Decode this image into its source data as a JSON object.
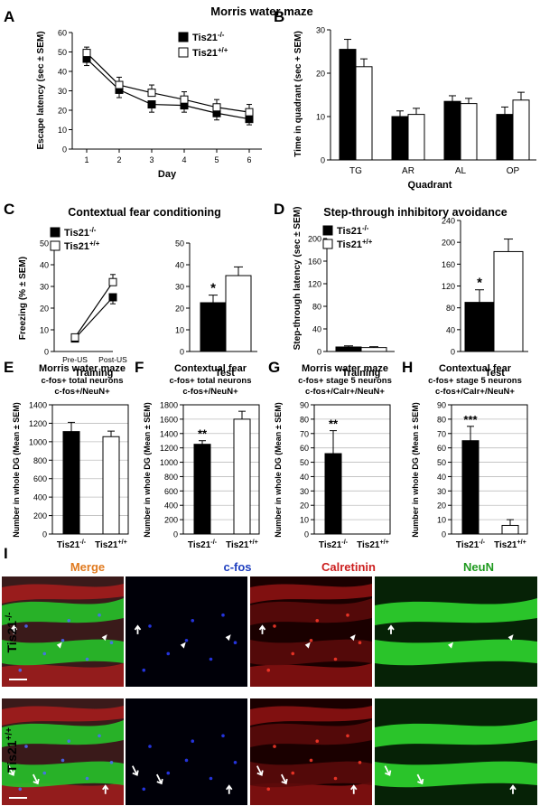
{
  "figure_title": "Morris water maze",
  "legend": {
    "ko_base": "Tis21",
    "ko_sup": "-/-",
    "wt_base": "Tis21",
    "wt_sup": "+/+"
  },
  "colors": {
    "ko": "#000000",
    "wt": "#ffffff",
    "merge": "#e07a1f",
    "cfos": "#1f3fbf",
    "calretinin": "#cc1f1f",
    "neun": "#1f9a1f"
  },
  "panels": {
    "A": "A",
    "B": "B",
    "C": "C",
    "D": "D",
    "E": "E",
    "F": "F",
    "G": "G",
    "H": "H",
    "I": "I"
  },
  "panel_C": {
    "title": "Contextual fear conditioning"
  },
  "panel_D": {
    "title": "Step-through inhibitory avoidance"
  },
  "panel_E": {
    "title1": "Morris water maze",
    "title2": "c-fos+ total neurons",
    "title3": "c-fos+/NeuN+"
  },
  "panel_F": {
    "title1": "Contextual fear",
    "title2": "c-fos+ total neurons",
    "title3": "c-fos+/NeuN+"
  },
  "panel_G": {
    "title1": "Morris water maze",
    "title2": "c-fos+ stage 5 neurons",
    "title3": "c-fos+/Calr+/NeuN+"
  },
  "panel_H": {
    "title1": "Contextual fear",
    "title2": "c-fos+ stage 5 neurons",
    "title3": "c-fos+/Calr+/NeuN+"
  },
  "micro": {
    "col_titles": [
      "Merge",
      "c-fos",
      "Calretinin",
      "NeuN"
    ],
    "row_titles": [
      "Tis21-/-",
      "Tis21+/+"
    ]
  },
  "chart_data": [
    {
      "id": "A",
      "type": "line",
      "xlabel": "Day",
      "ylabel": "Escape latency (sec ± SEM)",
      "x": [
        1,
        2,
        3,
        4,
        5,
        6
      ],
      "ylim": [
        0,
        60
      ],
      "yticks": [
        0,
        10,
        20,
        30,
        40,
        50,
        60
      ],
      "series": [
        {
          "name": "Tis21-/-",
          "values": [
            46.5,
            30.5,
            23,
            22.5,
            18.5,
            15.5
          ],
          "err": [
            3.5,
            4,
            4,
            3.5,
            3.5,
            3
          ]
        },
        {
          "name": "Tis21+/+",
          "values": [
            49.5,
            33,
            29,
            25.5,
            21.5,
            19
          ],
          "err": [
            3,
            4,
            4,
            4,
            4,
            4
          ]
        }
      ]
    },
    {
      "id": "B",
      "type": "bar",
      "xlabel": "Quadrant",
      "ylabel": "Time in quadrant (sec + SEM)",
      "categories": [
        "TG",
        "AR",
        "AL",
        "OP"
      ],
      "ylim": [
        0,
        30
      ],
      "yticks": [
        0,
        10,
        20,
        30
      ],
      "series": [
        {
          "name": "Tis21-/-",
          "values": [
            25.5,
            10,
            13.5,
            10.5
          ],
          "err": [
            2.3,
            1.3,
            1.3,
            1.7
          ]
        },
        {
          "name": "Tis21+/+",
          "values": [
            21.5,
            10.5,
            13,
            13.8
          ],
          "err": [
            1.8,
            1.4,
            1.2,
            1.8
          ]
        }
      ]
    },
    {
      "id": "C-training",
      "type": "line",
      "xlabel": "Training",
      "ylabel": "Freezing (% ± SEM)",
      "categories": [
        "Pre-US",
        "Post-US"
      ],
      "ylim": [
        0,
        50
      ],
      "yticks": [
        0,
        10,
        20,
        30,
        40,
        50
      ],
      "series": [
        {
          "name": "Tis21-/-",
          "values": [
            6,
            25
          ],
          "err": [
            1.5,
            3
          ]
        },
        {
          "name": "Tis21+/+",
          "values": [
            6.5,
            32
          ],
          "err": [
            1.5,
            3.5
          ]
        }
      ]
    },
    {
      "id": "C-test",
      "type": "bar",
      "xlabel": "Test",
      "ylim": [
        0,
        50
      ],
      "yticks": [
        0,
        10,
        20,
        30,
        40,
        50
      ],
      "series": [
        {
          "name": "Tis21-/-",
          "values": [
            22.5
          ],
          "err": [
            3.5
          ],
          "annotation": "*"
        },
        {
          "name": "Tis21+/+",
          "values": [
            35
          ],
          "err": [
            4
          ]
        }
      ]
    },
    {
      "id": "D-training",
      "type": "bar",
      "xlabel": "Training",
      "ylabel": "Step-through latency (sec ± SEM)",
      "ylim": [
        0,
        240
      ],
      "yticks": [
        0,
        40,
        80,
        120,
        160,
        200,
        240
      ],
      "series": [
        {
          "name": "Tis21-/-",
          "values": [
            8
          ],
          "err": [
            2
          ]
        },
        {
          "name": "Tis21+/+",
          "values": [
            7
          ],
          "err": [
            1.5
          ]
        }
      ]
    },
    {
      "id": "D-test",
      "type": "bar",
      "xlabel": "Test",
      "ylim": [
        0,
        240
      ],
      "yticks": [
        0,
        40,
        80,
        120,
        160,
        200,
        240
      ],
      "series": [
        {
          "name": "Tis21-/-",
          "values": [
            90
          ],
          "err": [
            23
          ],
          "annotation": "*"
        },
        {
          "name": "Tis21+/+",
          "values": [
            183
          ],
          "err": [
            23
          ]
        }
      ]
    },
    {
      "id": "E",
      "type": "bar",
      "ylabel": "Number in whole DG (Mean ± SEM)",
      "categories": [
        "Tis21-/-",
        "Tis21+/+"
      ],
      "ylim": [
        0,
        1400
      ],
      "yticks": [
        0,
        200,
        400,
        600,
        800,
        1000,
        1200,
        1400
      ],
      "values": [
        1110,
        1055
      ],
      "err": [
        100,
        60
      ],
      "annotations": [
        "",
        ""
      ]
    },
    {
      "id": "F",
      "type": "bar",
      "ylabel": "Number in whole DG (Mean ± SEM)",
      "categories": [
        "Tis21-/-",
        "Tis21+/+"
      ],
      "ylim": [
        0,
        1800
      ],
      "yticks": [
        0,
        200,
        400,
        600,
        800,
        1000,
        1200,
        1400,
        1600,
        1800
      ],
      "values": [
        1250,
        1600
      ],
      "err": [
        50,
        110
      ],
      "annotations": [
        "**",
        ""
      ]
    },
    {
      "id": "G",
      "type": "bar",
      "ylabel": "Number in whole DG (Mean ± SEM)",
      "categories": [
        "Tis21-/-",
        "Tis21+/+"
      ],
      "ylim": [
        0,
        90
      ],
      "yticks": [
        0,
        10,
        20,
        30,
        40,
        50,
        60,
        70,
        80,
        90
      ],
      "values": [
        56,
        0
      ],
      "err": [
        16,
        0
      ],
      "annotations": [
        "**",
        ""
      ]
    },
    {
      "id": "H",
      "type": "bar",
      "ylabel": "Number in whole DG (Mean ± SEM)",
      "categories": [
        "Tis21-/-",
        "Tis21+/+"
      ],
      "ylim": [
        0,
        90
      ],
      "yticks": [
        0,
        10,
        20,
        30,
        40,
        50,
        60,
        70,
        80,
        90
      ],
      "values": [
        65,
        6
      ],
      "err": [
        10,
        4
      ],
      "annotations": [
        "***",
        ""
      ]
    }
  ]
}
